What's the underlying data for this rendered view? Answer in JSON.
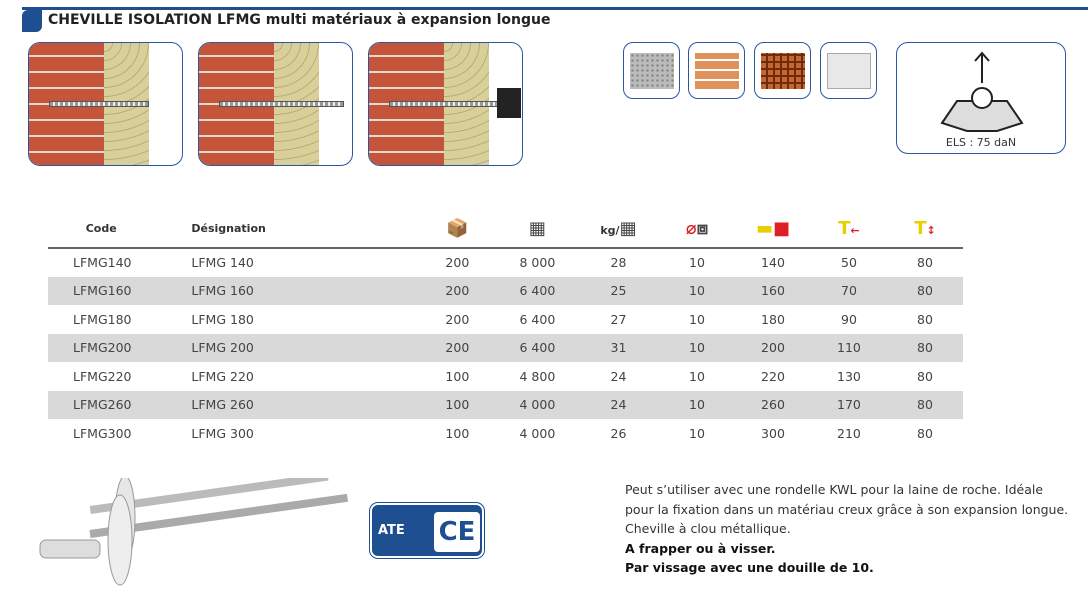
{
  "header": {
    "title": "CHEVILLE ISOLATION LFMG multi matériaux à expansion longue"
  },
  "illustrations": [
    "drilling-icon",
    "insertion-icon",
    "hammering-icon"
  ],
  "materials": [
    "concrete-icon",
    "solid-brick-icon",
    "hollow-brick-icon",
    "aerated-concrete-icon"
  ],
  "load": {
    "label": "ELS : 75 daN"
  },
  "table": {
    "headers": {
      "code": "Code",
      "designation": "Désignation",
      "kg_prefix": "kg/"
    },
    "header_icons": [
      "box-icon",
      "pallet-icon",
      "kg-per-pallet-icon",
      "drill-diameter-icon",
      "length-icon",
      "insulation-thickness-icon",
      "anchoring-depth-icon"
    ],
    "rows": [
      [
        "LFMG140",
        "LFMG 140",
        "200",
        "8 000",
        "28",
        "10",
        "140",
        "50",
        "80"
      ],
      [
        "LFMG160",
        "LFMG 160",
        "200",
        "6 400",
        "25",
        "10",
        "160",
        "70",
        "80"
      ],
      [
        "LFMG180",
        "LFMG 180",
        "200",
        "6 400",
        "27",
        "10",
        "180",
        "90",
        "80"
      ],
      [
        "LFMG200",
        "LFMG 200",
        "200",
        "6 400",
        "31",
        "10",
        "200",
        "110",
        "80"
      ],
      [
        "LFMG220",
        "LFMG 220",
        "100",
        "4 800",
        "24",
        "10",
        "220",
        "130",
        "80"
      ],
      [
        "LFMG260",
        "LFMG 260",
        "100",
        "4 000",
        "24",
        "10",
        "260",
        "170",
        "80"
      ],
      [
        "LFMG300",
        "LFMG 300",
        "100",
        "4 000",
        "26",
        "10",
        "300",
        "210",
        "80"
      ]
    ]
  },
  "certification": {
    "ate": "ATE",
    "ce": "CE"
  },
  "description": {
    "text": "Peut s’utiliser avec une rondelle KWL pour la laine de roche. Idéale pour la fixation dans un matériau creux grâce à son expansion longue. Cheville à clou métallique.",
    "bold1": "A frapper ou à visser.",
    "bold2": "Par vissage avec une douille de 10."
  },
  "colors": {
    "brand": "#1d4f91",
    "stripe": "#d9d9d9",
    "accent_red": "#e01e26"
  }
}
